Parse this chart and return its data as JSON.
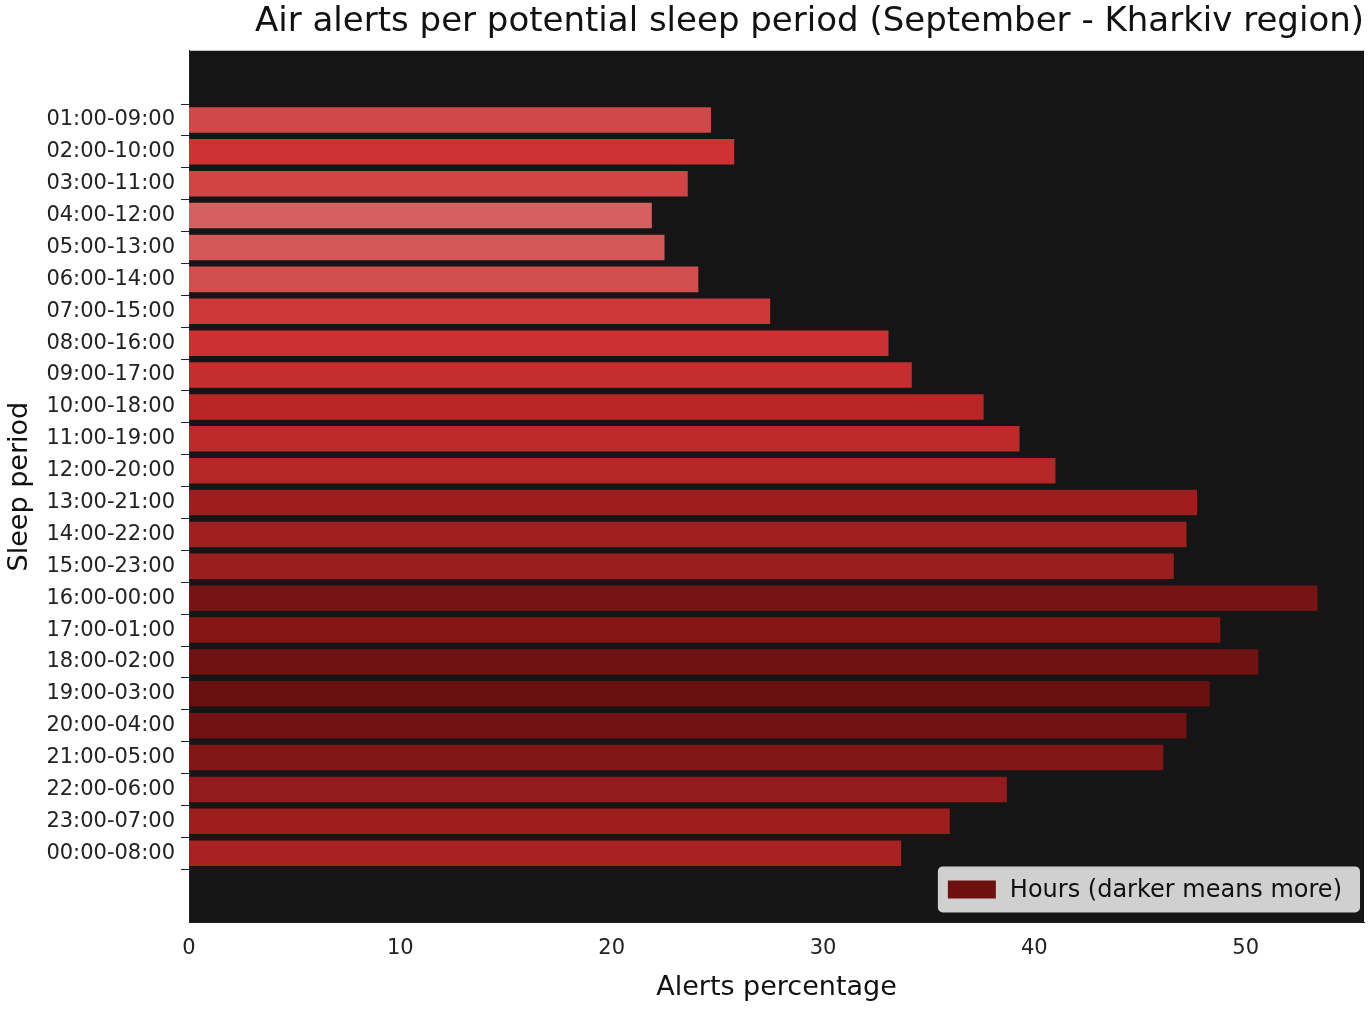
{
  "chart_data": {
    "type": "bar",
    "orientation": "horizontal",
    "title": "Air alerts per potential sleep period (September - Kharkiv region)",
    "xlabel": "Alerts percentage",
    "ylabel": "Sleep period",
    "categories": [
      "01:00-09:00",
      "02:00-10:00",
      "03:00-11:00",
      "04:00-12:00",
      "05:00-13:00",
      "06:00-14:00",
      "07:00-15:00",
      "08:00-16:00",
      "09:00-17:00",
      "10:00-18:00",
      "11:00-19:00",
      "12:00-20:00",
      "13:00-21:00",
      "14:00-22:00",
      "15:00-23:00",
      "16:00-00:00",
      "17:00-01:00",
      "18:00-02:00",
      "19:00-03:00",
      "20:00-04:00",
      "21:00-05:00",
      "22:00-06:00",
      "23:00-07:00",
      "00:00-08:00"
    ],
    "series": [
      {
        "name": "Hours (darker means more)",
        "color": "#6e1010",
        "values": [
          24.7,
          25.8,
          23.6,
          21.9,
          22.5,
          24.1,
          27.5,
          33.1,
          34.2,
          37.6,
          39.3,
          41.0,
          47.7,
          47.2,
          46.6,
          53.4,
          48.8,
          50.6,
          48.3,
          47.2,
          46.1,
          38.7,
          36.0,
          33.7
        ],
        "colors": [
          "#d04848",
          "#cf3232",
          "#d04444",
          "#d46060",
          "#d45858",
          "#d14e4e",
          "#cf3838",
          "#cc3030",
          "#c42e2e",
          "#b82626",
          "#bc2a2a",
          "#b52626",
          "#9e1e1e",
          "#a02020",
          "#9a1e1e",
          "#761414",
          "#861616",
          "#701212",
          "#661010",
          "#721212",
          "#801616",
          "#921c1c",
          "#9e1e1e",
          "#a82222"
        ]
      }
    ],
    "xlim": [
      0,
      55.6
    ],
    "xticks": [
      0,
      10,
      20,
      30,
      40,
      50
    ],
    "grid": false,
    "legend": "bottom right"
  }
}
